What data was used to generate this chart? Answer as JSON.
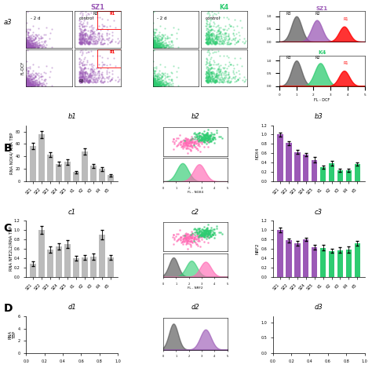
{
  "categories": [
    "SZ1",
    "SZ2",
    "SZ3",
    "SZ4",
    "SZ5",
    "K1",
    "K2",
    "K3",
    "K4",
    "K5"
  ],
  "b1_values": [
    57,
    75,
    43,
    28,
    31,
    15,
    48,
    25,
    20,
    10
  ],
  "b1_errors": [
    5,
    6,
    4,
    3,
    4,
    2,
    5,
    3,
    3,
    2
  ],
  "b1_ylabel": "RNA NOX4/ RNA TBP",
  "b1_title": "b1",
  "b1_ylim": [
    0,
    90
  ],
  "b3_values": [
    1.0,
    0.82,
    0.63,
    0.57,
    0.46,
    0.3,
    0.38,
    0.24,
    0.24,
    0.37
  ],
  "b3_errors": [
    0.05,
    0.04,
    0.04,
    0.04,
    0.06,
    0.03,
    0.05,
    0.03,
    0.03,
    0.04
  ],
  "b3_ylabel": "NOX4",
  "b3_title": "b3",
  "b3_ylim": [
    0,
    1.2
  ],
  "c1_values": [
    0.28,
    1.0,
    0.58,
    0.65,
    0.7,
    0.4,
    0.42,
    0.43,
    0.9,
    0.42
  ],
  "c1_errors": [
    0.05,
    0.08,
    0.06,
    0.07,
    0.08,
    0.05,
    0.05,
    0.06,
    0.1,
    0.05
  ],
  "c1_ylabel": "RNA NFE2L2/RNA TBP",
  "c1_title": "c1",
  "c1_ylim": [
    0,
    1.2
  ],
  "c3_values": [
    1.0,
    0.78,
    0.72,
    0.8,
    0.63,
    0.62,
    0.55,
    0.57,
    0.58,
    0.72
  ],
  "c3_errors": [
    0.05,
    0.04,
    0.05,
    0.04,
    0.05,
    0.06,
    0.04,
    0.06,
    0.06,
    0.05
  ],
  "c3_ylabel": "NRF2",
  "c3_title": "c3",
  "c3_ylim": [
    0,
    1.2
  ],
  "color_sz": "#9B59B6",
  "color_k": "#2ECC71",
  "color_bar_gray": "#BBBBBB",
  "b2_title": "b2",
  "c2_title": "c2",
  "d1_title": "d1",
  "d2_title": "d2",
  "d3_title": "d3",
  "a3_label": "a3",
  "sz1_label": "SZ1",
  "k4_label": "K4",
  "fl_dcf_label": "FL - DCF",
  "fl_nox4_label": "FL - NOX4",
  "fl_nrf2_label": "FL - NRF2",
  "minus2d_label": "- 2 d",
  "control_label": "control"
}
